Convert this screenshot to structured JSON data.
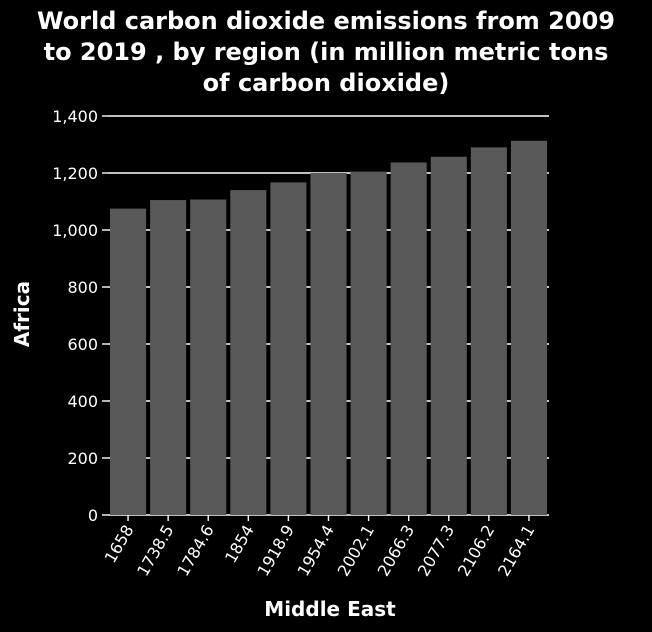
{
  "chart_data": {
    "type": "bar",
    "title_lines": [
      "World carbon dioxide emissions from 2009",
      "to 2019 , by region (in million metric tons",
      "of carbon dioxide)"
    ],
    "xlabel": "Middle East",
    "ylabel": "Africa",
    "categories": [
      "1658",
      "1738.5",
      "1784.6",
      "1854",
      "1918.9",
      "1954.4",
      "2002.1",
      "2066.3",
      "2077.3",
      "2106.2",
      "2164.1"
    ],
    "values": [
      1075,
      1105,
      1107,
      1140,
      1167,
      1200,
      1205,
      1237,
      1257,
      1290,
      1313
    ],
    "ylim": [
      0,
      1400
    ],
    "yticks": [
      0,
      200,
      400,
      600,
      800,
      1000,
      1200,
      1400
    ],
    "ytick_labels": [
      "0",
      "200",
      "400",
      "600",
      "800",
      "1,000",
      "1,200",
      "1,400"
    ],
    "grid": true,
    "colors": {
      "background": "#000000",
      "plot_background": "#000000",
      "bar": "#595959",
      "grid": "#ffffff",
      "text": "#ffffff"
    }
  }
}
